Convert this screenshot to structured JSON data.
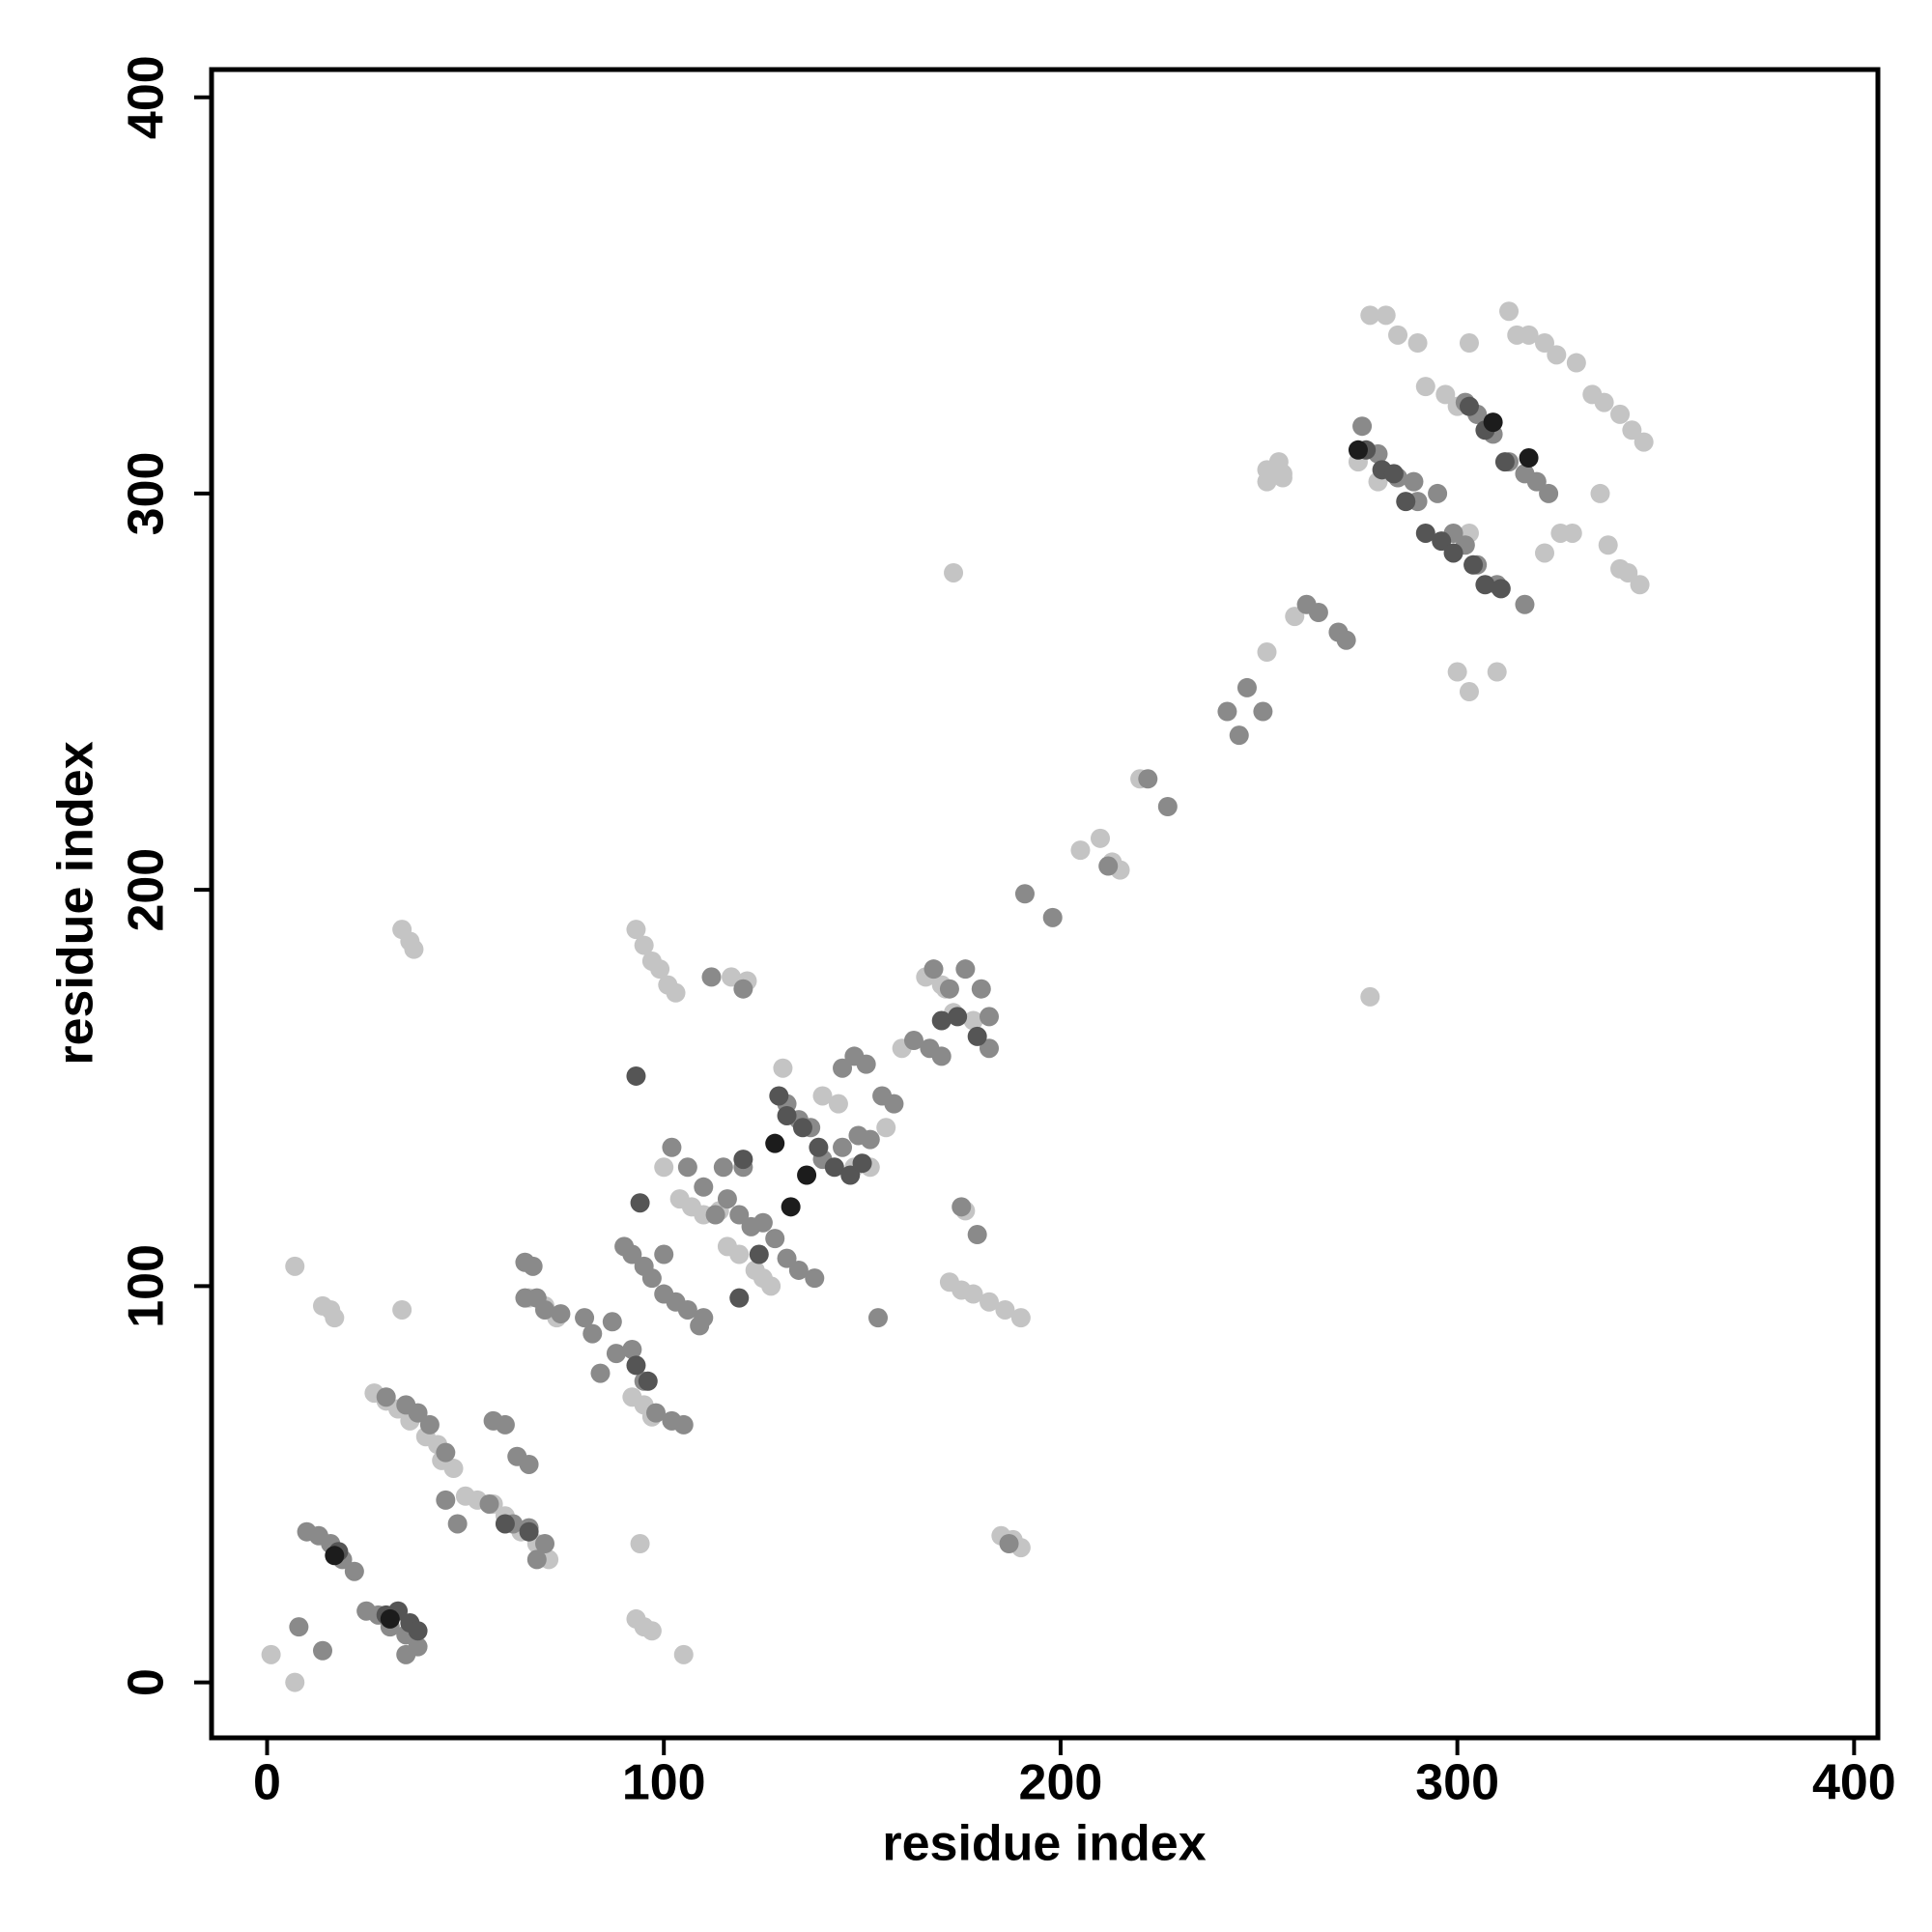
{
  "chart_data": {
    "type": "scatter",
    "xlabel": "residue index",
    "ylabel": "residue index",
    "xlim": [
      -14,
      406
    ],
    "ylim": [
      -14,
      407
    ],
    "xticks": [
      0,
      100,
      200,
      300,
      400
    ],
    "yticks": [
      0,
      100,
      200,
      300,
      400
    ],
    "series": [
      {
        "color": "#c4c4c4",
        "x": [
          1,
          7,
          7,
          14,
          16,
          17,
          34,
          34,
          36,
          37,
          93,
          95,
          97,
          99,
          101,
          103,
          93,
          95,
          97,
          94,
          105,
          100,
          117,
          121,
          116,
          119,
          123,
          125,
          104,
          107,
          110,
          114,
          172,
          175,
          178,
          182,
          186,
          190,
          176,
          185,
          188,
          190,
          173,
          278,
          44,
          47,
          50,
          53,
          57,
          60,
          64,
          68,
          71,
          27,
          30,
          33,
          36,
          40,
          43,
          252,
          255,
          252,
          256,
          259,
          252,
          256,
          278,
          282,
          285,
          290,
          275,
          280,
          292,
          297,
          300,
          303,
          313,
          315,
          318,
          322,
          325,
          330,
          334,
          337,
          341,
          344,
          347,
          336,
          338,
          341,
          343,
          346,
          300,
          303,
          310,
          322,
          326,
          329,
          303,
          305,
          210,
          213,
          215,
          166,
          170,
          173,
          178,
          127,
          130,
          148,
          152,
          156,
          140,
          144,
          160,
          97,
          95,
          92,
          220,
          205,
          171,
          66,
          70,
          73
        ],
        "y": [
          7,
          0,
          105,
          95,
          94,
          92,
          94,
          190,
          187,
          185,
          190,
          186,
          182,
          180,
          176,
          174,
          16,
          14,
          13,
          35,
          7,
          130,
          178,
          177,
          110,
          108,
          104,
          102,
          122,
          120,
          118,
          119,
          101,
          99,
          98,
          96,
          94,
          92,
          119,
          37,
          36,
          34,
          280,
          173,
          56,
          54,
          47,
          46,
          45,
          42,
          38,
          35,
          31,
          73,
          71,
          69,
          66,
          62,
          60,
          306,
          308,
          303,
          304,
          269,
          260,
          305,
          345,
          345,
          340,
          338,
          308,
          303,
          327,
          325,
          322,
          338,
          346,
          340,
          340,
          338,
          335,
          333,
          325,
          323,
          320,
          316,
          313,
          300,
          287,
          281,
          280,
          277,
          255,
          250,
          255,
          285,
          290,
          290,
          290,
          320,
          213,
          207,
          205,
          178,
          176,
          169,
          167,
          100,
          155,
          130,
          130,
          140,
          148,
          146,
          160,
          67,
          70,
          72,
          228,
          210,
          175,
          97,
          95,
          92
        ]
      },
      {
        "color": "#8a8a8a",
        "x": [
          10,
          13,
          16,
          19,
          22,
          8,
          14,
          25,
          28,
          31,
          35,
          35,
          38,
          30,
          35,
          38,
          41,
          45,
          57,
          60,
          63,
          66,
          62,
          66,
          70,
          68,
          45,
          48,
          56,
          65,
          67,
          65,
          68,
          70,
          74,
          80,
          82,
          84,
          87,
          88,
          90,
          92,
          95,
          97,
          100,
          92,
          95,
          98,
          102,
          105,
          100,
          103,
          106,
          110,
          109,
          102,
          106,
          110,
          113,
          116,
          119,
          122,
          112,
          120,
          115,
          120,
          125,
          128,
          131,
          134,
          138,
          131,
          134,
          137,
          140,
          145,
          149,
          152,
          145,
          148,
          151,
          155,
          158,
          163,
          167,
          170,
          168,
          172,
          176,
          180,
          182,
          175,
          179,
          182,
          154,
          191,
          198,
          212,
          222,
          227,
          242,
          245,
          247,
          251,
          262,
          265,
          270,
          272,
          276,
          280,
          285,
          289,
          290,
          295,
          299,
          302,
          305,
          310,
          302,
          305,
          309,
          313,
          317,
          320,
          323,
          317,
          187
        ],
        "y": [
          38,
          37,
          35,
          31,
          28,
          14,
          8,
          18,
          17,
          14,
          12,
          7,
          9,
          72,
          70,
          68,
          65,
          58,
          66,
          65,
          57,
          55,
          40,
          39,
          35,
          31,
          46,
          40,
          45,
          106,
          105,
          97,
          97,
          94,
          93,
          92,
          88,
          78,
          91,
          83,
          110,
          108,
          105,
          102,
          108,
          84,
          76,
          68,
          66,
          65,
          98,
          96,
          94,
          92,
          90,
          135,
          130,
          125,
          118,
          122,
          118,
          115,
          178,
          175,
          130,
          130,
          116,
          112,
          107,
          104,
          102,
          146,
          142,
          140,
          132,
          135,
          138,
          137,
          155,
          158,
          156,
          148,
          146,
          162,
          160,
          158,
          180,
          175,
          180,
          175,
          168,
          120,
          113,
          160,
          92,
          199,
          193,
          206,
          228,
          221,
          245,
          239,
          251,
          245,
          272,
          270,
          265,
          263,
          317,
          310,
          304,
          303,
          298,
          300,
          290,
          287,
          282,
          277,
          323,
          320,
          315,
          308,
          305,
          303,
          300,
          272,
          35
        ]
      },
      {
        "color": "#555555",
        "x": [
          18,
          33,
          36,
          38,
          94,
          93,
          120,
          124,
          129,
          131,
          135,
          139,
          143,
          147,
          150,
          170,
          174,
          179,
          277,
          281,
          284,
          287,
          292,
          296,
          299,
          304,
          307,
          311,
          303,
          307,
          312,
          96,
          119,
          60,
          66,
          30,
          93
        ],
        "y": [
          33,
          18,
          15,
          13,
          121,
          153,
          132,
          108,
          148,
          143,
          140,
          135,
          130,
          128,
          131,
          167,
          168,
          163,
          311,
          306,
          305,
          298,
          290,
          288,
          285,
          282,
          277,
          276,
          322,
          316,
          308,
          76,
          97,
          40,
          38,
          17,
          80
        ]
      },
      {
        "color": "#1c1c1c",
        "x": [
          128,
          132,
          136,
          318,
          275,
          309,
          17,
          31
        ],
        "y": [
          136,
          120,
          128,
          309,
          311,
          318,
          32,
          16
        ]
      }
    ]
  }
}
